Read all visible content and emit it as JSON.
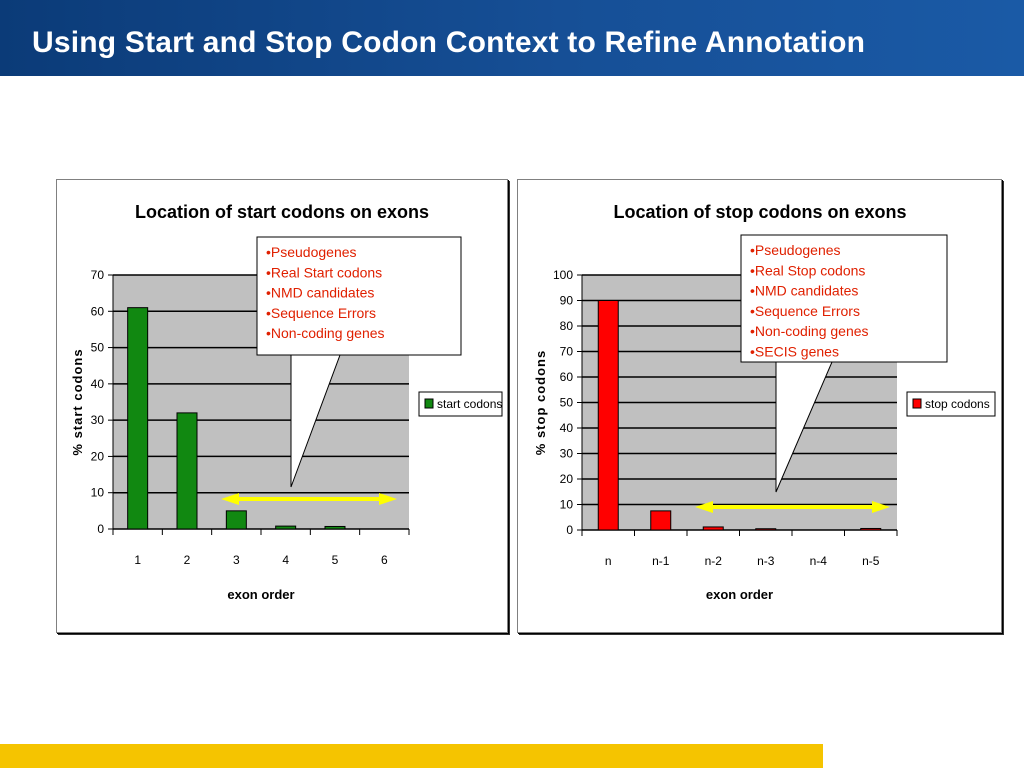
{
  "slide": {
    "title": "Using Start and Stop Codon Context  to Refine Annotation"
  },
  "colors": {
    "title_bar": "#164f96",
    "footer_bar": "#f5c400",
    "start_bar": "#118811",
    "stop_bar": "#ff0000",
    "plot_bg": "#c0c0c0",
    "callout_text": "#e02000",
    "arrow": "#ffff00"
  },
  "chart_data": [
    {
      "type": "bar",
      "title": "Location of start codons on exons",
      "xlabel": "exon order",
      "ylabel": "% start codons",
      "categories": [
        "1",
        "2",
        "3",
        "4",
        "5",
        "6"
      ],
      "series": [
        {
          "name": "start codons",
          "values": [
            61,
            32,
            5,
            0.8,
            0.7,
            0
          ]
        }
      ],
      "ylim": [
        0,
        70
      ],
      "yticks": [
        0,
        10,
        20,
        30,
        40,
        50,
        60,
        70
      ],
      "grid": true,
      "legend": "right",
      "callout": [
        "•Pseudogenes",
        "•Real Start codons",
        "•NMD candidates",
        "•Sequence Errors",
        "•Non-coding genes"
      ]
    },
    {
      "type": "bar",
      "title": "Location of stop codons on exons",
      "xlabel": "exon order",
      "ylabel": "% stop codons",
      "categories": [
        "n",
        "n-1",
        "n-2",
        "n-3",
        "n-4",
        "n-5"
      ],
      "series": [
        {
          "name": "stop codons",
          "values": [
            90,
            7.5,
            1.2,
            0.5,
            0,
            0.6
          ]
        }
      ],
      "ylim": [
        0,
        100
      ],
      "yticks": [
        0,
        10,
        20,
        30,
        40,
        50,
        60,
        70,
        80,
        90,
        100
      ],
      "grid": true,
      "legend": "right",
      "callout": [
        "•Pseudogenes",
        "•Real Stop codons",
        "•NMD candidates",
        "•Sequence Errors",
        "•Non-coding genes",
        "•SECIS genes"
      ]
    }
  ]
}
